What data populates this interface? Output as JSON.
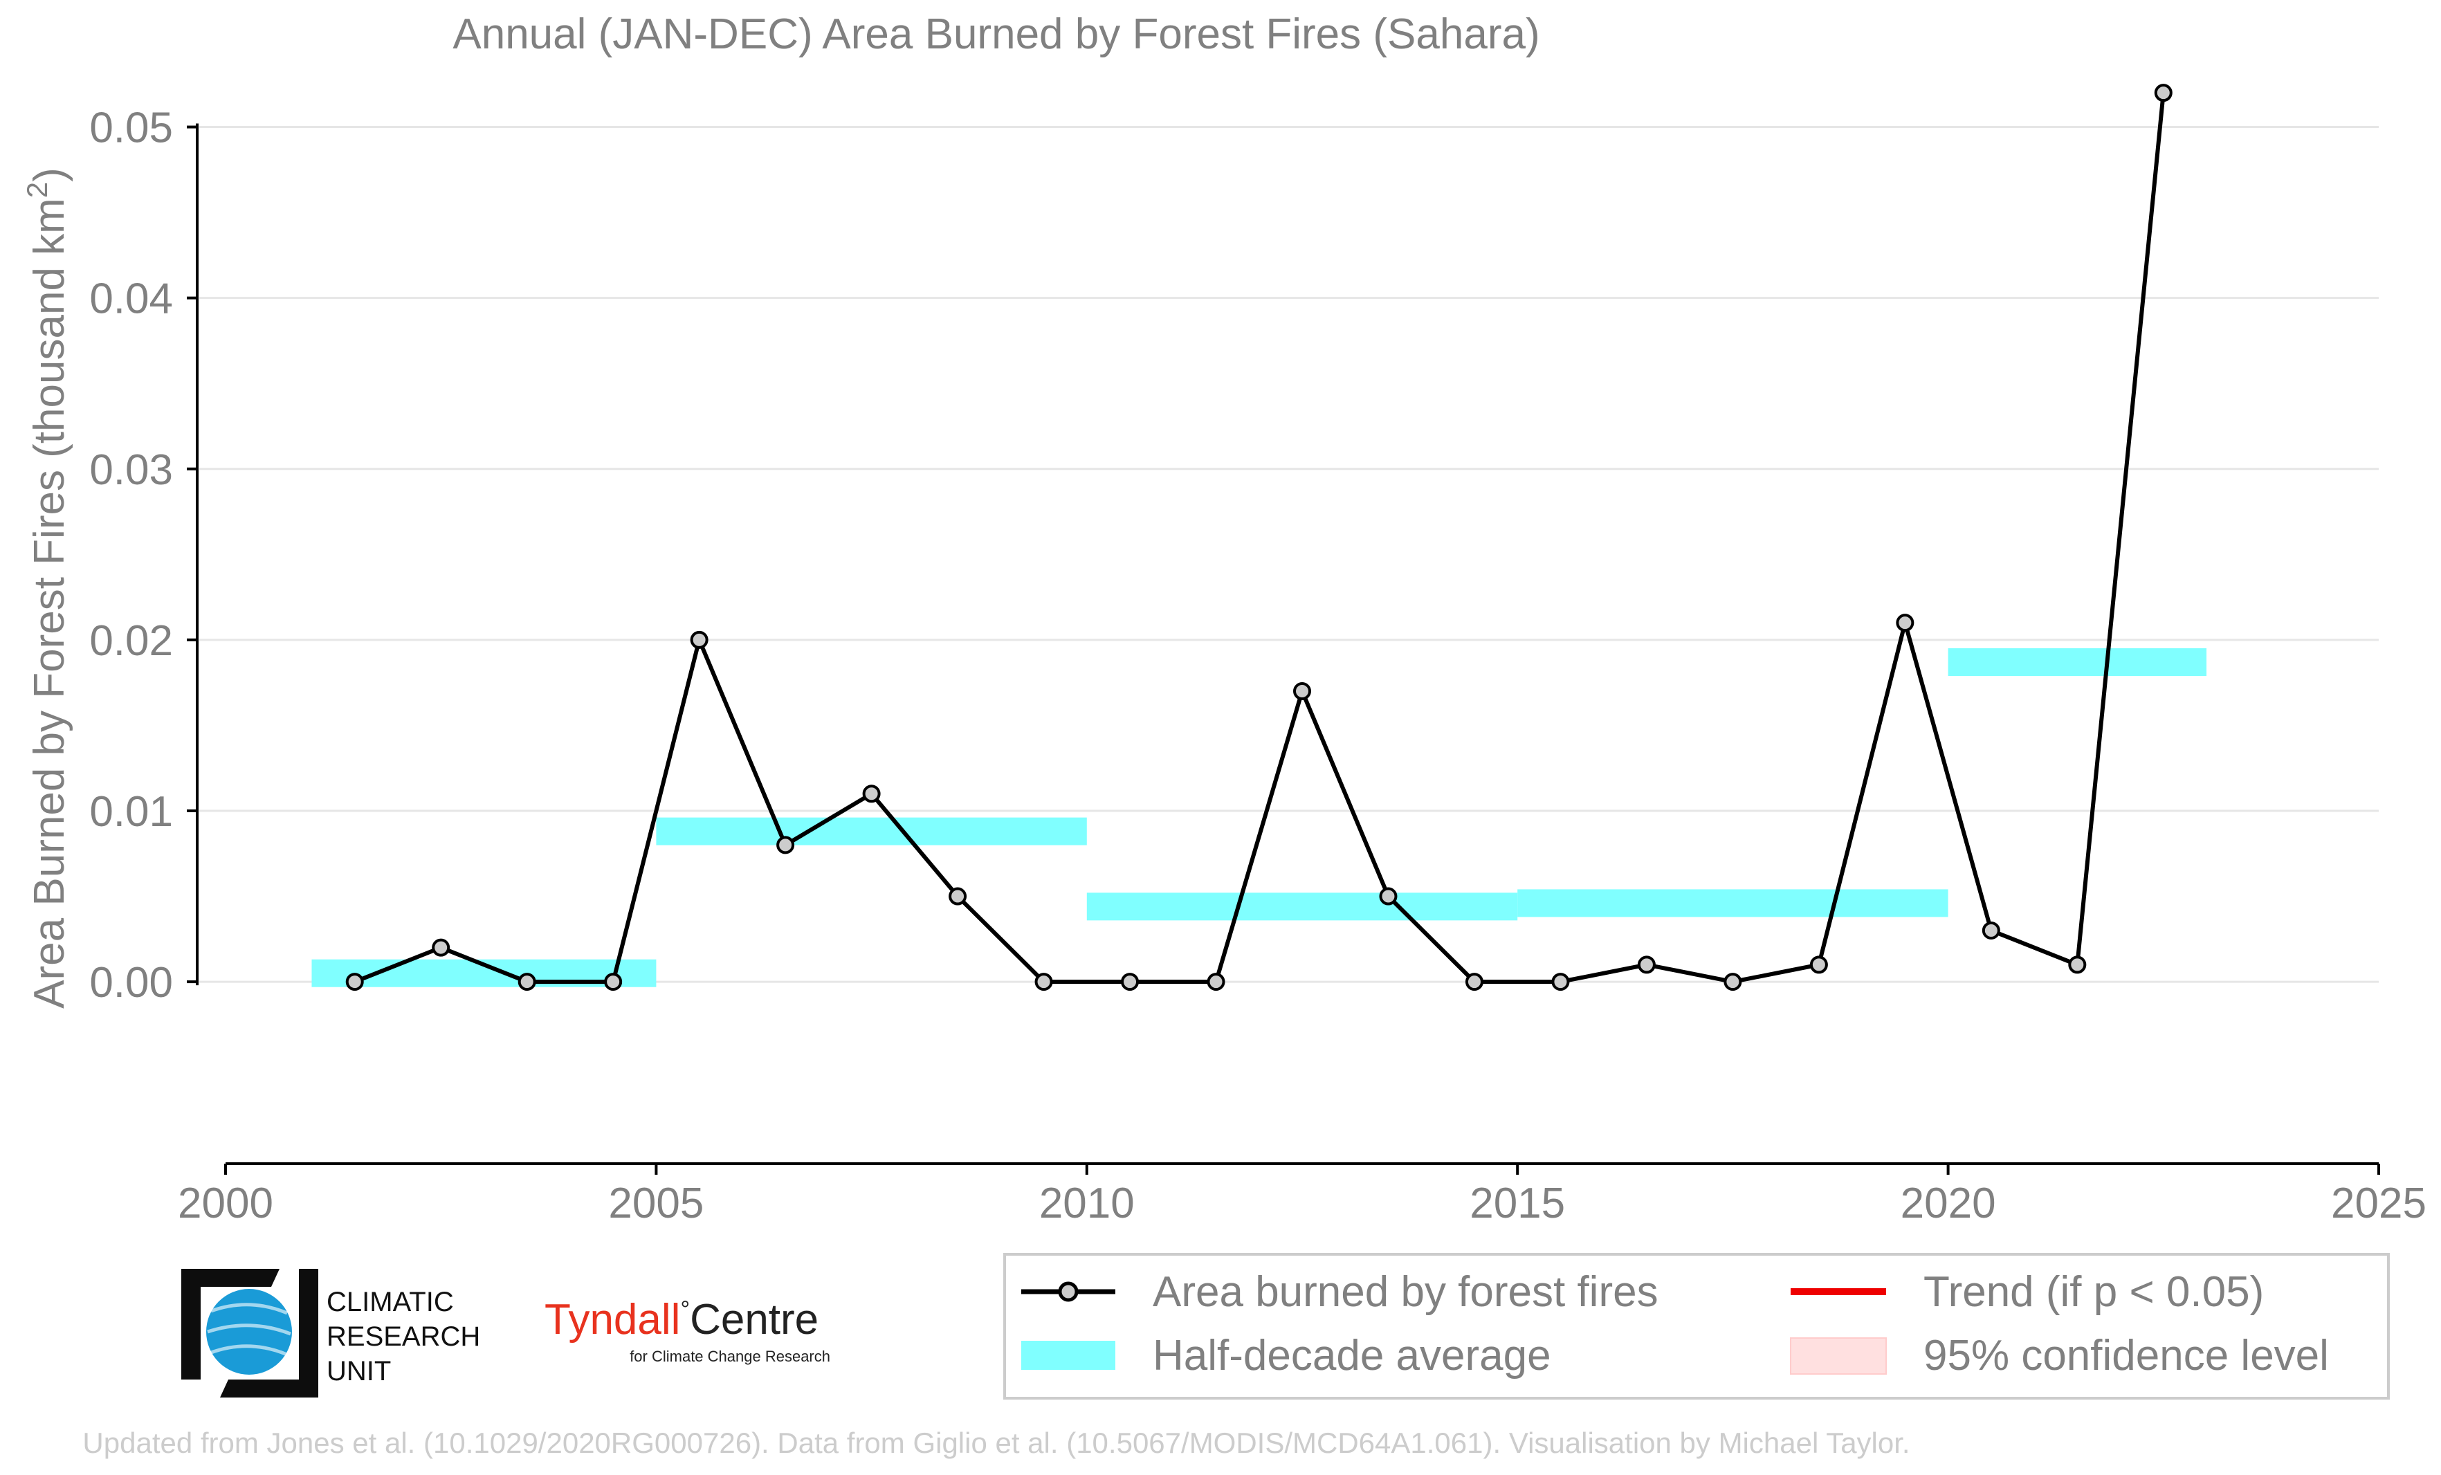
{
  "chart_data": {
    "type": "line",
    "title": "Annual (JAN-DEC) Area Burned by Forest Fires (Sahara)",
    "ylabel": "Area Burned by Forest Fires (thousand km",
    "ylabel_sup": "2",
    "ylabel_close": ")",
    "xlim": [
      2000,
      2025
    ],
    "ylim": [
      -0.0055,
      0.055
    ],
    "xticks": [
      2000,
      2005,
      2010,
      2015,
      2020,
      2025
    ],
    "yticks": [
      0.0,
      0.01,
      0.02,
      0.03,
      0.04,
      0.05
    ],
    "ytick_labels": [
      "0.00",
      "0.01",
      "0.02",
      "0.03",
      "0.04",
      "0.05"
    ],
    "grid": "horizontal",
    "legend_position": "bottom-right",
    "series": [
      {
        "name": "Area burned by forest fires",
        "style": "line-with-markers",
        "color": "#000000",
        "marker_fill": "#cccccc",
        "x": [
          2001.5,
          2002.5,
          2003.5,
          2004.5,
          2005.5,
          2006.5,
          2007.5,
          2008.5,
          2009.5,
          2010.5,
          2011.5,
          2012.5,
          2013.5,
          2014.5,
          2015.5,
          2016.5,
          2017.5,
          2018.5,
          2019.5,
          2020.5,
          2021.5,
          2022.5
        ],
        "y": [
          0.0,
          0.002,
          0.0,
          0.0,
          0.02,
          0.008,
          0.011,
          0.005,
          0.0,
          0.0,
          0.0,
          0.017,
          0.005,
          0.0,
          0.0,
          0.001,
          0.0,
          0.001,
          0.021,
          0.003,
          0.001,
          0.052
        ]
      },
      {
        "name": "Half-decade average",
        "style": "horizontal-bands",
        "color": "#80ffff",
        "segments": [
          {
            "x0": 2001,
            "x1": 2005,
            "y": 0.0005
          },
          {
            "x0": 2005,
            "x1": 2010,
            "y": 0.0088
          },
          {
            "x0": 2010,
            "x1": 2015,
            "y": 0.0044
          },
          {
            "x0": 2015,
            "x1": 2020,
            "y": 0.0046
          },
          {
            "x0": 2020,
            "x1": 2023,
            "y": 0.0187
          }
        ]
      },
      {
        "name": "Trend (if p < 0.05)",
        "style": "legend-only",
        "color": "#ee0000"
      },
      {
        "name": "95% confidence level",
        "style": "legend-only",
        "color": "#ffe0e0"
      }
    ]
  },
  "logos": {
    "cru_lines": [
      "CLIMATIC",
      "RESEARCH",
      "UNIT"
    ],
    "tyndall_name": "Tyndall",
    "tyndall_degree": "°",
    "tyndall_centre": "Centre",
    "tyndall_sub": "for Climate Change Research"
  },
  "credit": "Updated from Jones et al. (10.1029/2020RG000726). Data from Giglio et al. (10.5067/MODIS/MCD64A1.061). Visualisation by Michael Taylor.",
  "colors": {
    "text_gray": "#808080",
    "grid": "#e6e6e6",
    "credit_gray": "#cccccc",
    "tyndall_red": "#e8321e",
    "cru_blue": "#1a9bd7"
  }
}
